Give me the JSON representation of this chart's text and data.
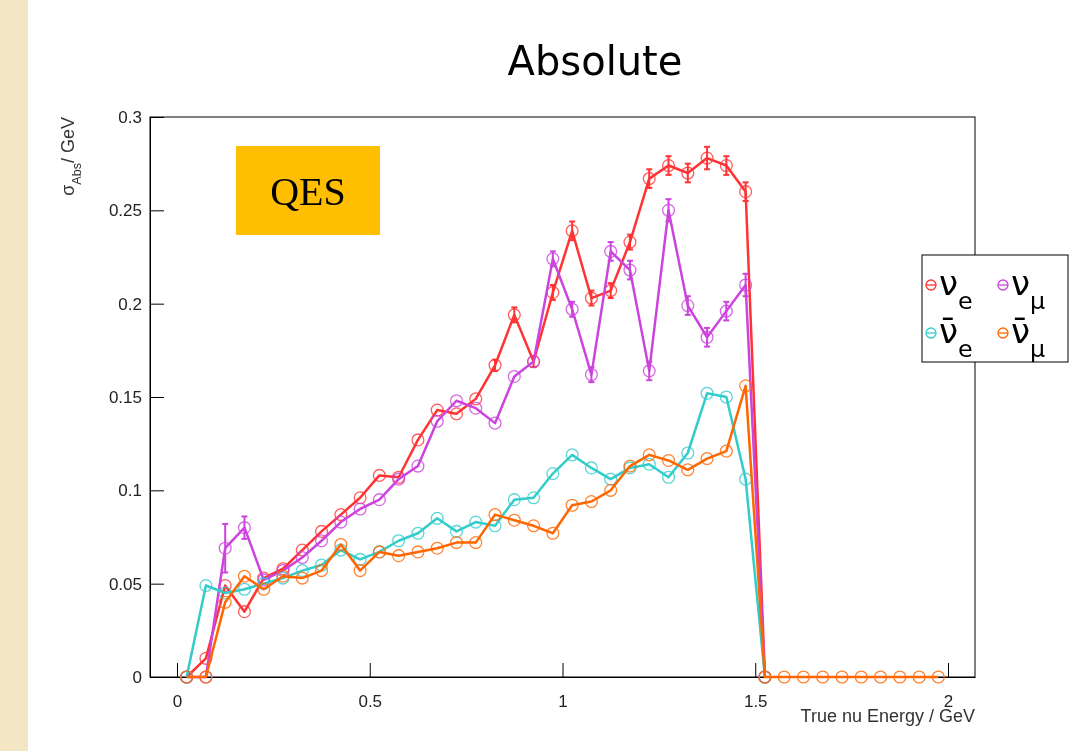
{
  "chart_data": {
    "type": "line",
    "title": "Absolute",
    "xlabel": "True nu Energy / GeV",
    "ylabel": "σ$_{Abs}$/ GeV",
    "annotations": [
      "QES"
    ],
    "x": [
      0.025,
      0.075,
      0.125,
      0.175,
      0.225,
      0.275,
      0.325,
      0.375,
      0.425,
      0.475,
      0.525,
      0.575,
      0.625,
      0.675,
      0.725,
      0.775,
      0.825,
      0.875,
      0.925,
      0.975,
      1.025,
      1.075,
      1.125,
      1.175,
      1.225,
      1.275,
      1.325,
      1.375,
      1.425,
      1.475,
      1.525,
      1.575,
      1.625,
      1.675,
      1.725,
      1.775,
      1.825,
      1.875,
      1.925,
      1.975
    ],
    "xlim": [
      -0.07,
      2.07
    ],
    "xticks": [
      0,
      0.5,
      1,
      1.5,
      2
    ],
    "ylim": [
      0,
      0.3
    ],
    "yticks": [
      0,
      0.05,
      0.1,
      0.15,
      0.2,
      0.25,
      0.3
    ],
    "marker": "circle",
    "line_style": "solid",
    "legend": "right",
    "grid": false,
    "series": [
      {
        "name": "ν$_{e}$",
        "color": "#ff3333",
        "values": [
          0,
          0.01,
          0.049,
          0.035,
          0.053,
          0.058,
          0.068,
          0.078,
          0.087,
          0.096,
          0.108,
          0.107,
          0.127,
          0.143,
          0.141,
          0.149,
          0.167,
          0.194,
          0.169,
          0.206,
          0.239,
          0.203,
          0.207,
          0.233,
          0.267,
          0.274,
          0.27,
          0.278,
          0.274,
          0.26,
          0,
          null,
          null,
          null,
          null,
          null,
          null,
          null,
          null,
          null
        ],
        "errors": [
          null,
          null,
          null,
          null,
          null,
          null,
          null,
          null,
          null,
          null,
          null,
          null,
          null,
          null,
          null,
          null,
          0.003,
          0.004,
          0.003,
          0.004,
          0.005,
          0.004,
          0.004,
          0.004,
          0.005,
          0.005,
          0.005,
          0.006,
          0.005,
          0.005,
          null,
          null,
          null,
          null,
          null,
          null,
          null,
          null,
          null,
          null
        ]
      },
      {
        "name": "ν$_{μ}$",
        "color": "#cc44dd",
        "values": [
          0,
          0,
          0.069,
          0.08,
          0.052,
          0.057,
          0.064,
          0.073,
          0.083,
          0.09,
          0.095,
          0.106,
          0.113,
          0.137,
          0.148,
          0.144,
          0.136,
          0.161,
          0.169,
          0.224,
          0.197,
          0.162,
          0.228,
          0.218,
          0.164,
          0.25,
          0.199,
          0.182,
          0.196,
          0.21,
          0,
          null,
          null,
          null,
          null,
          null,
          null,
          null,
          null,
          null
        ],
        "errors": [
          null,
          null,
          0.013,
          0.006,
          null,
          null,
          null,
          null,
          null,
          null,
          null,
          null,
          null,
          null,
          null,
          null,
          null,
          null,
          null,
          0.004,
          0.004,
          0.004,
          0.005,
          0.005,
          0.005,
          0.006,
          0.005,
          0.005,
          0.005,
          0.006,
          null,
          null,
          null,
          null,
          null,
          null,
          null,
          null,
          null,
          null
        ]
      },
      {
        "name": "ν̄$_{e}$",
        "color": "#33cccc",
        "values": [
          0,
          0.049,
          0.045,
          0.047,
          0.05,
          0.053,
          0.057,
          0.06,
          0.068,
          0.063,
          0.067,
          0.073,
          0.077,
          0.085,
          0.078,
          0.083,
          0.081,
          0.095,
          0.096,
          0.109,
          0.119,
          0.112,
          0.106,
          0.112,
          0.114,
          0.107,
          0.12,
          0.152,
          0.15,
          0.106,
          0,
          null,
          null,
          null,
          null,
          null,
          null,
          null,
          null,
          null
        ]
      },
      {
        "name": "ν̄$_{μ}$",
        "color": "#ff6600",
        "values": [
          0,
          0,
          0.04,
          0.054,
          0.047,
          0.054,
          0.053,
          0.057,
          0.071,
          0.057,
          0.067,
          0.065,
          0.067,
          0.069,
          0.072,
          0.072,
          0.087,
          0.084,
          0.081,
          0.077,
          0.092,
          0.094,
          0.1,
          0.113,
          0.119,
          0.116,
          0.111,
          0.117,
          0.121,
          0.156,
          0,
          0,
          0,
          0,
          0,
          0,
          0,
          0,
          0,
          0
        ]
      }
    ]
  }
}
